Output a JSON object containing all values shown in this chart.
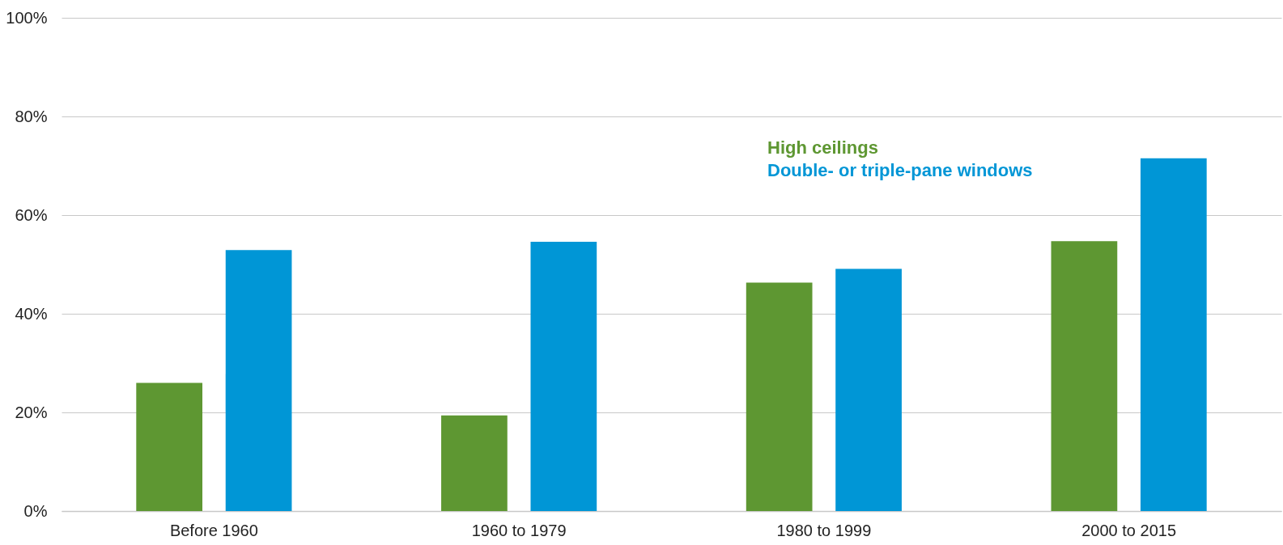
{
  "chart_data": {
    "type": "bar",
    "categories": [
      "Before 1960",
      "1960 to 1979",
      "1980 to 1999",
      "2000 to 2015"
    ],
    "series": [
      {
        "name": "High ceilings",
        "color": "#5e9732",
        "values": [
          26.0,
          19.4,
          46.3,
          54.7
        ]
      },
      {
        "name": "Double- or triple-pane windows",
        "color": "#0096d6",
        "values": [
          52.9,
          54.6,
          49.1,
          71.5
        ]
      }
    ],
    "ylim": [
      0,
      100
    ],
    "yticks": [
      {
        "value": 0,
        "label": "0%"
      },
      {
        "value": 20,
        "label": "20%"
      },
      {
        "value": 40,
        "label": "40%"
      },
      {
        "value": 60,
        "label": "60%"
      },
      {
        "value": 80,
        "label": "80%"
      },
      {
        "value": 100,
        "label": "100%"
      }
    ],
    "grid": "y",
    "legend": "top right"
  }
}
